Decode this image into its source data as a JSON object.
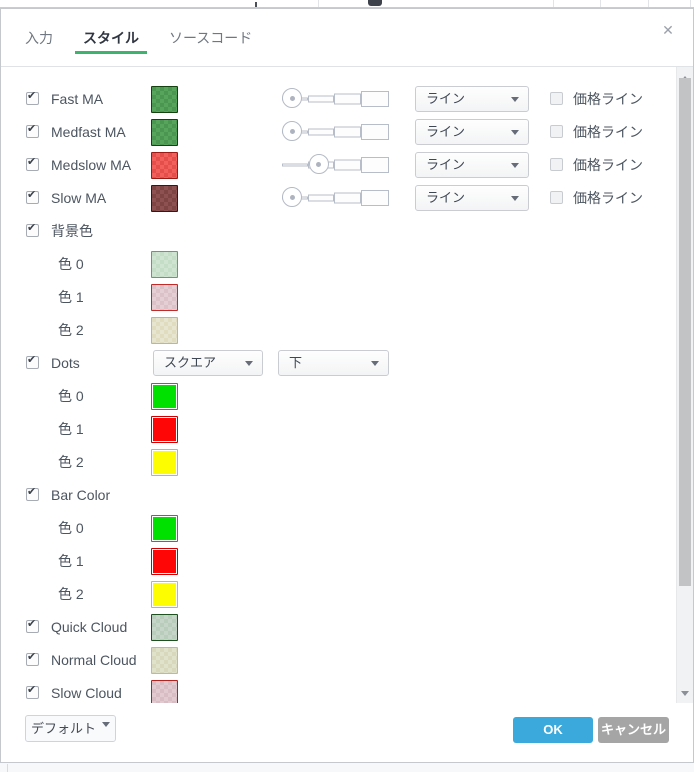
{
  "glyphs": {
    "check": "✔",
    "close": "✕"
  },
  "tabs": {
    "input": "入力",
    "style": "スタイル",
    "source": "ソースコード",
    "underline_color": "#3cb46e"
  },
  "labels": {
    "price_line": "価格ライン"
  },
  "rows": [
    {
      "type": "plot",
      "label": "Fast MA",
      "checked": true,
      "swatch": {
        "c1": "#57a45d",
        "c2": "#4b9752",
        "border": "#15430f"
      },
      "width_index": 0,
      "select": "ライン",
      "price_line_checked": false
    },
    {
      "type": "plot",
      "label": "Medfast MA",
      "checked": true,
      "swatch": {
        "c1": "#57a45d",
        "c2": "#4b9752",
        "border": "#15430f"
      },
      "width_index": 0,
      "select": "ライン",
      "price_line_checked": false
    },
    {
      "type": "plot",
      "label": "Medslow MA",
      "checked": true,
      "swatch": {
        "c1": "#f2605c",
        "c2": "#e54f4b",
        "border": "#9b1a15"
      },
      "width_index": 1,
      "select": "ライン",
      "price_line_checked": false
    },
    {
      "type": "plot",
      "label": "Slow MA",
      "checked": true,
      "swatch": {
        "c1": "#8d5151",
        "c2": "#7e4444",
        "border": "#401212"
      },
      "width_index": 0,
      "select": "ライン",
      "price_line_checked": false
    },
    {
      "type": "section",
      "label": "背景色",
      "checked": true
    },
    {
      "type": "color-sub",
      "label": "色 0",
      "swatch": {
        "c1": "#cfe5d1",
        "c2": "#c3ddc6",
        "border": "#2fc52f"
      }
    },
    {
      "type": "color-sub",
      "label": "色 1",
      "swatch": {
        "c1": "#e4cfd4",
        "c2": "#dac2c8",
        "border": "#c32b28"
      }
    },
    {
      "type": "color-sub",
      "label": "色 2",
      "swatch": {
        "c1": "#e7e5d0",
        "c2": "#dfdcc0",
        "border": "#d2c900"
      }
    },
    {
      "type": "section-selects",
      "label": "Dots",
      "checked": true,
      "selects": [
        "スクエア",
        "下"
      ]
    },
    {
      "type": "color-sub",
      "label": "色 0",
      "swatch": {
        "solid": "#00e100",
        "border": "#00b400"
      }
    },
    {
      "type": "color-sub",
      "label": "色 1",
      "swatch": {
        "solid": "#fe0606",
        "border": "#cc0000"
      }
    },
    {
      "type": "color-sub",
      "label": "色 2",
      "swatch": {
        "solid": "#fdfd00",
        "border": "#caca00"
      }
    },
    {
      "type": "section",
      "label": "Bar Color",
      "checked": true
    },
    {
      "type": "color-sub",
      "label": "色 0",
      "swatch": {
        "solid": "#00e100",
        "border": "#00b400"
      }
    },
    {
      "type": "color-sub",
      "label": "色 1",
      "swatch": {
        "solid": "#fe0606",
        "border": "#cc0000"
      }
    },
    {
      "type": "color-sub",
      "label": "色 2",
      "swatch": {
        "solid": "#fdfd00",
        "border": "#caca00"
      }
    },
    {
      "type": "plot-simple",
      "label": "Quick Cloud",
      "checked": true,
      "swatch": {
        "c1": "#c5d6c8",
        "c2": "#b9cdbd",
        "border": "#1d5220"
      }
    },
    {
      "type": "plot-simple",
      "label": "Normal Cloud",
      "checked": true,
      "swatch": {
        "c1": "#e1e2ca",
        "c2": "#d8d9bc",
        "border": "#cfd000"
      }
    },
    {
      "type": "plot-simple",
      "label": "Slow Cloud",
      "checked": true,
      "swatch": {
        "c1": "#e1cbd0",
        "c2": "#d8bec4",
        "border": "#b32421"
      }
    }
  ],
  "footer": {
    "default_label": "デフォルト",
    "ok_label": "OK",
    "cancel_label": "キャンセル",
    "ok_bg": "#3ba9db",
    "cancel_bg": "#a5a5a5"
  }
}
